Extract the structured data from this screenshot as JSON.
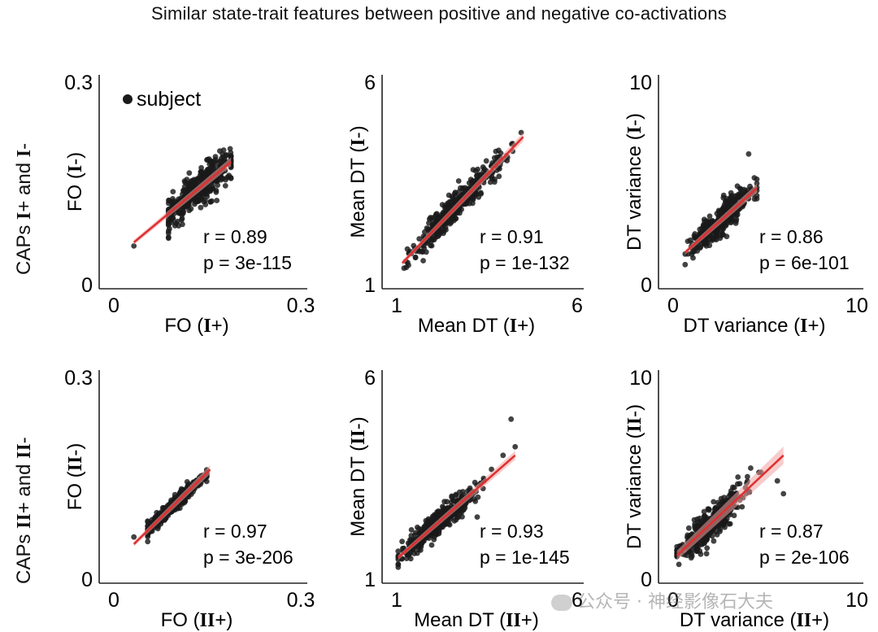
{
  "title": "Similar state-trait features between positive and negative co-activations",
  "row_labels": [
    {
      "pre": "CAPs ",
      "a": "I",
      "mid": "+ and ",
      "b": "I",
      "post": "-"
    },
    {
      "pre": "CAPs ",
      "a": "II",
      "mid": "+ and ",
      "b": "II",
      "post": "-"
    }
  ],
  "legend": {
    "label": "subject"
  },
  "watermark": "公众号 · 神经影像石大夫",
  "colors": {
    "points": "#1a1a1a",
    "fit": "#e03030",
    "band": "#f2a0a0"
  },
  "chart_data": [
    {
      "type": "scatter",
      "xlim": [
        0,
        0.3
      ],
      "ylim": [
        0,
        0.3
      ],
      "xticks": [
        "0",
        "0.3"
      ],
      "yticks": [
        "0",
        "0.3"
      ],
      "xlabel": {
        "pre": "FO (",
        "bold": "I",
        "post": "+)"
      },
      "ylabel": {
        "pre": "FO (",
        "bold": "I",
        "post": "-)"
      },
      "r": "r = 0.89",
      "p": "p = 3e-115",
      "legend": true,
      "cloud": {
        "x_center": 0.145,
        "x_sd": 0.028,
        "slope": 0.95,
        "resid": 0.012,
        "n": 400,
        "x_min": 0.1,
        "x_max": 0.19,
        "extra": [
          [
            0.05,
            0.06
          ]
        ]
      },
      "fit": [
        [
          0.05,
          0.065
        ],
        [
          0.19,
          0.178
        ]
      ]
    },
    {
      "type": "scatter",
      "xlim": [
        1,
        6
      ],
      "ylim": [
        1,
        6
      ],
      "xticks": [
        "1",
        "6"
      ],
      "yticks": [
        "1",
        "6"
      ],
      "xlabel": {
        "pre": "Mean DT (",
        "bold": "I",
        "post": "+)"
      },
      "ylabel": {
        "pre": "Mean DT (",
        "bold": "I",
        "post": "-)"
      },
      "r": "r = 0.91",
      "p": "p = 1e-132",
      "cloud": {
        "x_center": 2.9,
        "x_sd": 0.55,
        "slope": 0.95,
        "resid": 0.17,
        "n": 400,
        "x_min": 1.5,
        "x_max": 4.6,
        "extra": [
          [
            4.45,
            4.65
          ],
          [
            1.6,
            1.5
          ]
        ]
      },
      "fit": [
        [
          1.5,
          1.6
        ],
        [
          4.5,
          4.55
        ]
      ]
    },
    {
      "type": "scatter",
      "xlim": [
        0,
        10
      ],
      "ylim": [
        0,
        10
      ],
      "xticks": [
        "0",
        "10"
      ],
      "yticks": [
        "0",
        "10"
      ],
      "xlabel": {
        "pre": "DT variance (",
        "bold": "I",
        "post": "+)"
      },
      "ylabel": {
        "pre": "DT variance (",
        "bold": "I",
        "post": "-)"
      },
      "r": "r = 0.86",
      "p": "p = 6e-101",
      "cloud": {
        "x_center": 3.0,
        "x_sd": 0.75,
        "slope": 1.0,
        "resid": 0.35,
        "n": 400,
        "x_min": 1.3,
        "x_max": 4.8,
        "extra": [
          [
            4.4,
            6.3
          ]
        ]
      },
      "fit": [
        [
          1.3,
          1.7
        ],
        [
          4.8,
          4.7
        ]
      ]
    },
    {
      "type": "scatter",
      "xlim": [
        0,
        0.3
      ],
      "ylim": [
        0,
        0.3
      ],
      "xticks": [
        "0",
        "0.3"
      ],
      "yticks": [
        "0",
        "0.3"
      ],
      "xlabel": {
        "pre": "FO (",
        "bold": "II",
        "post": "+)"
      },
      "ylabel": {
        "pre": "FO (",
        "bold": "II",
        "post": "-)"
      },
      "r": "r = 0.97",
      "p": "p = 3e-206",
      "cloud": {
        "x_center": 0.11,
        "x_sd": 0.022,
        "slope": 1.0,
        "resid": 0.005,
        "n": 400,
        "x_min": 0.07,
        "x_max": 0.155,
        "extra": [
          [
            0.05,
            0.065
          ]
        ]
      },
      "fit": [
        [
          0.05,
          0.055
        ],
        [
          0.16,
          0.16
        ]
      ]
    },
    {
      "type": "scatter",
      "xlim": [
        1,
        6
      ],
      "ylim": [
        1,
        6
      ],
      "xticks": [
        "1",
        "6"
      ],
      "yticks": [
        "1",
        "6"
      ],
      "xlabel": {
        "pre": "Mean DT (",
        "bold": "II",
        "post": "+)"
      },
      "ylabel": {
        "pre": "Mean DT (",
        "bold": "II",
        "post": "-)"
      },
      "r": "r = 0.93",
      "p": "p = 1e-145",
      "cloud": {
        "x_center": 2.4,
        "x_sd": 0.5,
        "slope": 1.0,
        "resid": 0.15,
        "n": 400,
        "x_min": 1.4,
        "x_max": 4.2,
        "extra": [
          [
            4.2,
            4.85
          ],
          [
            4.3,
            4.2
          ],
          [
            4.0,
            4.0
          ]
        ]
      },
      "fit": [
        [
          1.4,
          1.6
        ],
        [
          4.3,
          4.0
        ]
      ]
    },
    {
      "type": "scatter",
      "xlim": [
        0,
        10
      ],
      "ylim": [
        0,
        10
      ],
      "xticks": [
        "0",
        "10"
      ],
      "yticks": [
        "0",
        "10"
      ],
      "xlabel": {
        "pre": "DT variance (",
        "bold": "II",
        "post": "+)"
      },
      "ylabel": {
        "pre": "DT variance (",
        "bold": "II",
        "post": "-)"
      },
      "r": "r = 0.87",
      "p": "p = 2e-106",
      "cloud": {
        "x_center": 2.5,
        "x_sd": 0.8,
        "slope": 1.05,
        "resid": 0.35,
        "n": 400,
        "x_min": 0.9,
        "x_max": 5.0,
        "extra": [
          [
            5.8,
            4.8
          ],
          [
            6.1,
            4.2
          ],
          [
            4.5,
            5.4
          ],
          [
            4.9,
            5.2
          ]
        ]
      },
      "fit": [
        [
          0.9,
          1.3
        ],
        [
          6.1,
          6.0
        ]
      ]
    }
  ]
}
